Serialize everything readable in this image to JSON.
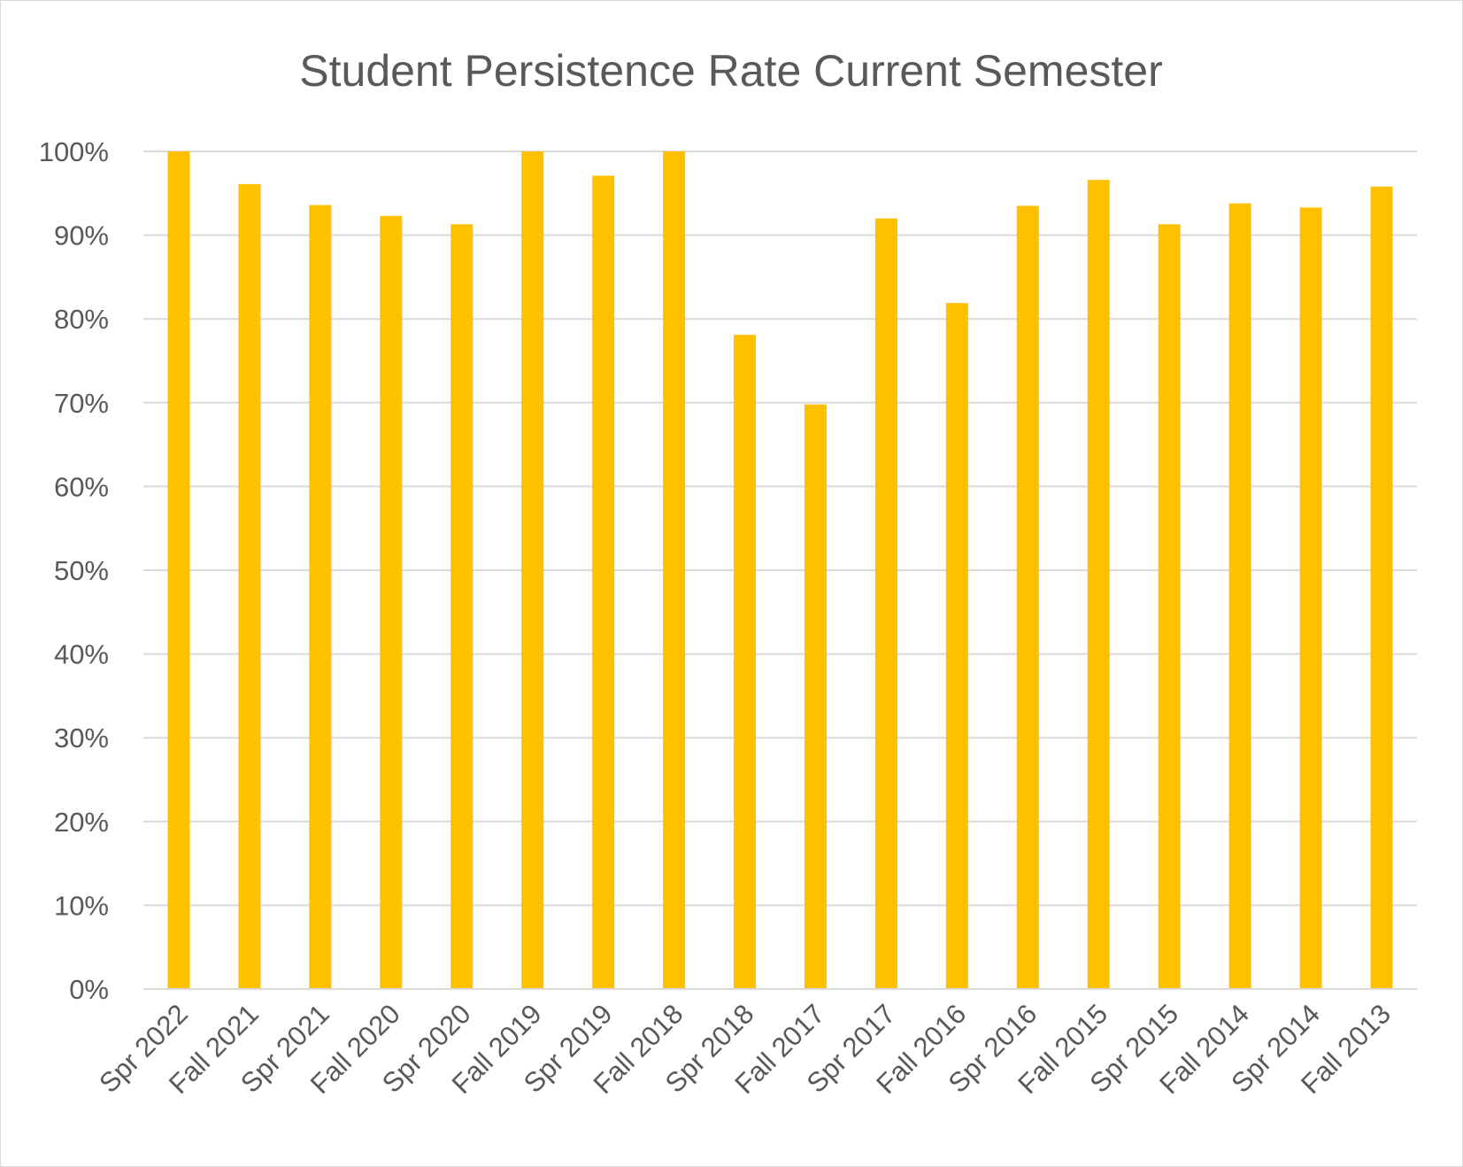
{
  "chart_data": {
    "type": "bar",
    "title": "Student Persistence Rate Current Semester",
    "xlabel": "",
    "ylabel": "",
    "ylim": [
      0,
      100
    ],
    "yticks": [
      "0%",
      "10%",
      "20%",
      "30%",
      "40%",
      "50%",
      "60%",
      "70%",
      "80%",
      "90%",
      "100%"
    ],
    "grid": true,
    "legend": "none",
    "bar_color": "#FFC000",
    "categories": [
      "Spr 2022",
      "Fall 2021",
      "Spr 2021",
      "Fall 2020",
      "Spr 2020",
      "Fall 2019",
      "Spr 2019",
      "Fall 2018",
      "Spr 2018",
      "Fall 2017",
      "Spr 2017",
      "Fall 2016",
      "Spr 2016",
      "Fall 2015",
      "Spr 2015",
      "Fall 2014",
      "Spr 2014",
      "Fall 2013"
    ],
    "values": [
      100,
      96.1,
      93.6,
      92.3,
      91.3,
      100,
      97.1,
      100,
      78.1,
      69.8,
      92.0,
      81.9,
      93.5,
      96.6,
      91.3,
      93.8,
      93.3,
      95.8
    ]
  }
}
